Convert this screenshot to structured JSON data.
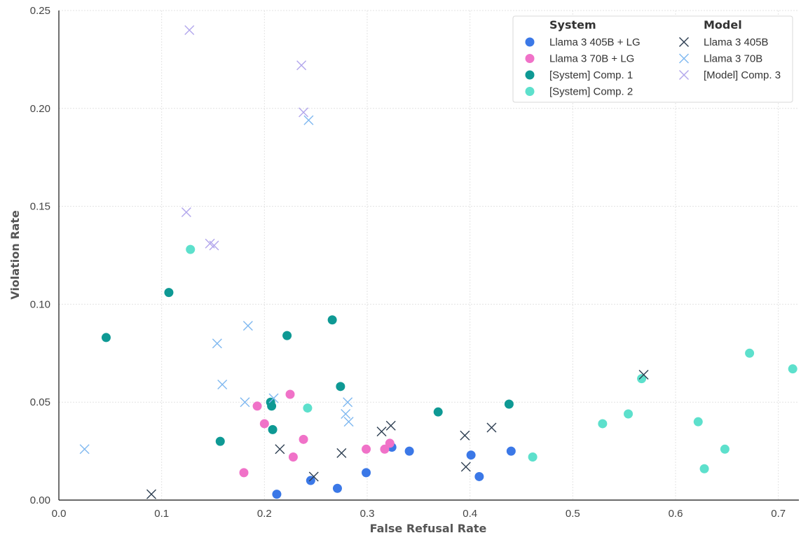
{
  "chart_data": {
    "type": "scatter",
    "xlabel": "False Refusal Rate",
    "ylabel": "Violation Rate",
    "xlim": [
      0.0,
      0.72
    ],
    "ylim": [
      0.0,
      0.25
    ],
    "xticks": [
      "0.0",
      "0.1",
      "0.2",
      "0.3",
      "0.4",
      "0.5",
      "0.6",
      "0.7"
    ],
    "yticks": [
      "0.00",
      "0.05",
      "0.10",
      "0.15",
      "0.20",
      "0.25"
    ],
    "grid": true,
    "legend_position": "top-right",
    "legend_groups": [
      "System",
      "Model"
    ],
    "series": [
      {
        "name": "Llama 3 405B + LG",
        "group": "System",
        "marker": "circle",
        "color": "#3b78e7",
        "points": [
          [
            0.212,
            0.003
          ],
          [
            0.245,
            0.01
          ],
          [
            0.271,
            0.006
          ],
          [
            0.299,
            0.014
          ],
          [
            0.324,
            0.027
          ],
          [
            0.341,
            0.025
          ],
          [
            0.401,
            0.023
          ],
          [
            0.409,
            0.012
          ],
          [
            0.44,
            0.025
          ]
        ]
      },
      {
        "name": "Llama 3 70B + LG",
        "group": "System",
        "marker": "circle",
        "color": "#f072c8",
        "points": [
          [
            0.18,
            0.014
          ],
          [
            0.193,
            0.048
          ],
          [
            0.2,
            0.039
          ],
          [
            0.225,
            0.054
          ],
          [
            0.228,
            0.022
          ],
          [
            0.238,
            0.031
          ],
          [
            0.299,
            0.026
          ],
          [
            0.317,
            0.026
          ],
          [
            0.322,
            0.029
          ]
        ]
      },
      {
        "name": "[System] Comp. 1",
        "group": "System",
        "marker": "circle",
        "color": "#0e9994",
        "points": [
          [
            0.046,
            0.083
          ],
          [
            0.107,
            0.106
          ],
          [
            0.157,
            0.03
          ],
          [
            0.206,
            0.05
          ],
          [
            0.207,
            0.048
          ],
          [
            0.208,
            0.036
          ],
          [
            0.222,
            0.084
          ],
          [
            0.266,
            0.092
          ],
          [
            0.274,
            0.058
          ],
          [
            0.369,
            0.045
          ],
          [
            0.438,
            0.049
          ]
        ]
      },
      {
        "name": "[System] Comp. 2",
        "group": "System",
        "marker": "circle",
        "color": "#5de0cc",
        "points": [
          [
            0.128,
            0.128
          ],
          [
            0.242,
            0.047
          ],
          [
            0.461,
            0.022
          ],
          [
            0.529,
            0.039
          ],
          [
            0.554,
            0.044
          ],
          [
            0.567,
            0.062
          ],
          [
            0.622,
            0.04
          ],
          [
            0.628,
            0.016
          ],
          [
            0.648,
            0.026
          ],
          [
            0.672,
            0.075
          ],
          [
            0.714,
            0.067
          ]
        ]
      },
      {
        "name": "Llama 3 405B",
        "group": "Model",
        "marker": "x",
        "color": "#2e3f52",
        "points": [
          [
            0.09,
            0.003
          ],
          [
            0.215,
            0.026
          ],
          [
            0.248,
            0.012
          ],
          [
            0.275,
            0.024
          ],
          [
            0.314,
            0.035
          ],
          [
            0.323,
            0.038
          ],
          [
            0.395,
            0.033
          ],
          [
            0.396,
            0.017
          ],
          [
            0.421,
            0.037
          ],
          [
            0.569,
            0.064
          ]
        ]
      },
      {
        "name": "Llama 3 70B",
        "group": "Model",
        "marker": "x",
        "color": "#7fb8f0",
        "points": [
          [
            0.025,
            0.026
          ],
          [
            0.154,
            0.08
          ],
          [
            0.159,
            0.059
          ],
          [
            0.181,
            0.05
          ],
          [
            0.184,
            0.089
          ],
          [
            0.209,
            0.052
          ],
          [
            0.243,
            0.194
          ],
          [
            0.279,
            0.044
          ],
          [
            0.281,
            0.05
          ],
          [
            0.282,
            0.04
          ]
        ]
      },
      {
        "name": "[Model] Comp. 3",
        "group": "Model",
        "marker": "x",
        "color": "#b2a6ec",
        "points": [
          [
            0.124,
            0.147
          ],
          [
            0.127,
            0.24
          ],
          [
            0.147,
            0.131
          ],
          [
            0.151,
            0.13
          ],
          [
            0.236,
            0.222
          ],
          [
            0.238,
            0.198
          ]
        ]
      }
    ]
  }
}
